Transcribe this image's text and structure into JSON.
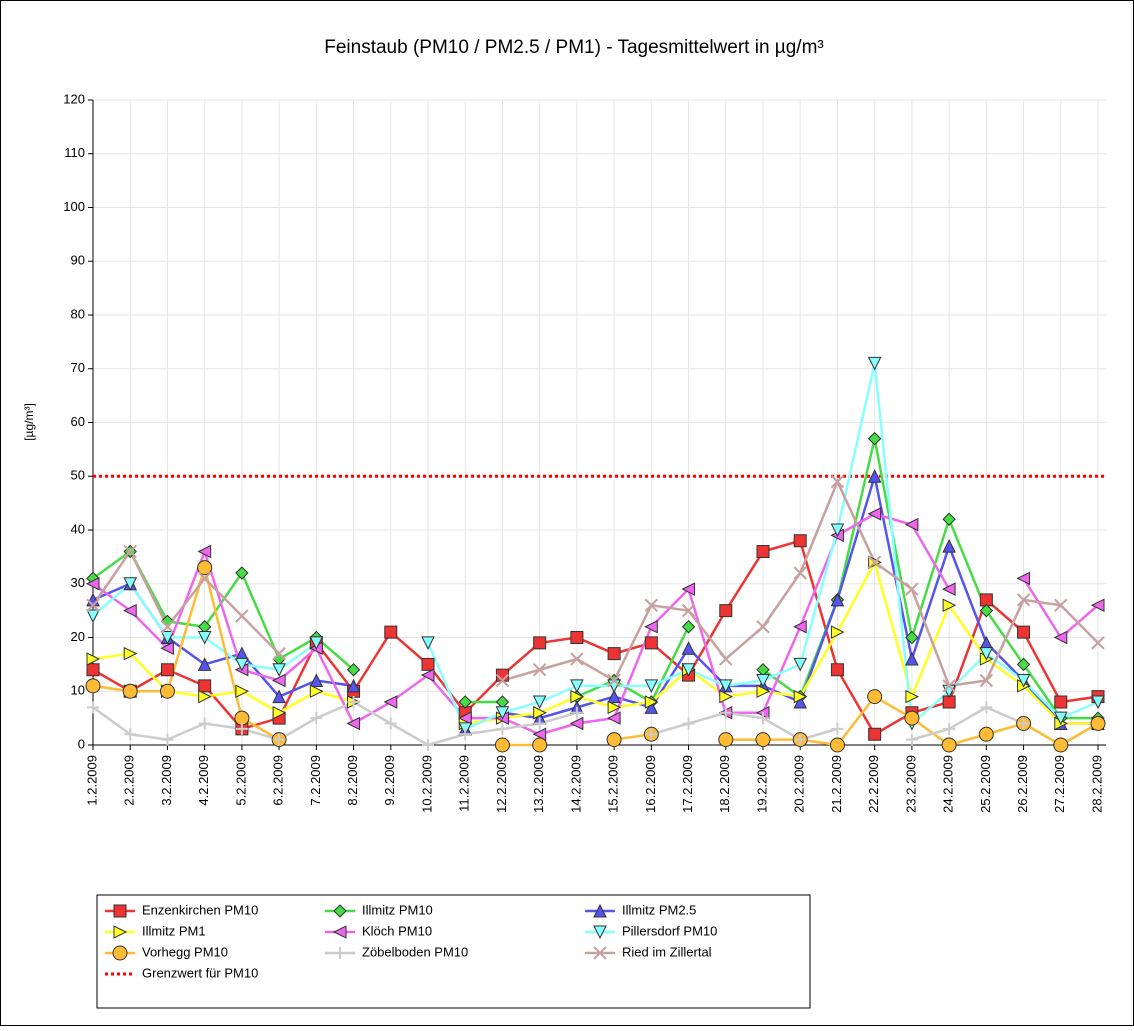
{
  "chart_data": {
    "type": "line",
    "title": "Feinstaub (PM10 / PM2.5 / PM1) -  Tagesmittelwert in µg/m³",
    "y_label": "[µg/m³]",
    "categories": [
      "1.2.2009",
      "2.2.2009",
      "3.2.2009",
      "4.2.2009",
      "5.2.2009",
      "6.2.2009",
      "7.2.2009",
      "8.2.2009",
      "9.2.2009",
      "10.2.2009",
      "11.2.2009",
      "12.2.2009",
      "13.2.2009",
      "14.2.2009",
      "15.2.2009",
      "16.2.2009",
      "17.2.2009",
      "18.2.2009",
      "19.2.2009",
      "20.2.2009",
      "21.2.2009",
      "22.2.2009",
      "23.2.2009",
      "24.2.2009",
      "25.2.2009",
      "26.2.2009",
      "27.2.2009",
      "28.2.2009"
    ],
    "ylim": [
      0,
      120
    ],
    "yticks": [
      0,
      10,
      20,
      30,
      40,
      50,
      60,
      70,
      80,
      90,
      100,
      110,
      120
    ],
    "grid": true,
    "series": [
      {
        "name": "Enzenkirchen PM10",
        "color": "#ee3333",
        "marker": "square",
        "values": [
          14,
          10,
          14,
          11,
          3,
          5,
          19,
          10,
          21,
          15,
          6,
          13,
          19,
          20,
          17,
          19,
          13,
          25,
          36,
          38,
          14,
          2,
          6,
          8,
          27,
          21,
          8,
          9
        ]
      },
      {
        "name": "Illmitz PM10",
        "color": "#44dd44",
        "marker": "diamond",
        "values": [
          31,
          36,
          23,
          22,
          32,
          16,
          20,
          14,
          null,
          null,
          8,
          8,
          null,
          9,
          12,
          8,
          22,
          null,
          14,
          9,
          27,
          57,
          20,
          42,
          25,
          15,
          5,
          5
        ]
      },
      {
        "name": "Illmitz PM2.5",
        "color": "#5555ee",
        "marker": "triangle-up",
        "values": [
          27,
          30,
          20,
          15,
          17,
          9,
          12,
          11,
          null,
          null,
          3,
          6,
          5,
          7,
          9,
          7,
          18,
          11,
          11,
          8,
          27,
          50,
          16,
          37,
          19,
          12,
          4,
          4
        ]
      },
      {
        "name": "Illmitz PM1",
        "color": "#ffff22",
        "marker": "triangle-right",
        "values": [
          16,
          17,
          10,
          9,
          10,
          6,
          10,
          8,
          null,
          null,
          4,
          5,
          6,
          9,
          7,
          8,
          14,
          9,
          10,
          9,
          21,
          34,
          9,
          26,
          16,
          11,
          4,
          4
        ]
      },
      {
        "name": "Klöch PM10",
        "color": "#ee66ee",
        "marker": "triangle-left",
        "values": [
          30,
          25,
          18,
          36,
          14,
          12,
          18,
          4,
          8,
          13,
          5,
          5,
          2,
          4,
          5,
          22,
          29,
          6,
          6,
          22,
          39,
          43,
          41,
          29,
          null,
          31,
          20,
          26
        ]
      },
      {
        "name": "Pillersdorf PM10",
        "color": "#88ffff",
        "marker": "triangle-down",
        "values": [
          24,
          30,
          20,
          20,
          15,
          14,
          19,
          null,
          null,
          19,
          3,
          6,
          8,
          11,
          11,
          11,
          14,
          11,
          12,
          15,
          40,
          71,
          4,
          10,
          17,
          12,
          5,
          8
        ]
      },
      {
        "name": "Vorhegg PM10",
        "color": "#ffbb33",
        "marker": "circle",
        "values": [
          11,
          10,
          10,
          33,
          5,
          1,
          null,
          null,
          null,
          null,
          null,
          0,
          0,
          null,
          1,
          2,
          null,
          1,
          1,
          1,
          0,
          9,
          5,
          0,
          2,
          4,
          0,
          4
        ]
      },
      {
        "name": "Zöbelboden PM10",
        "color": "#cccccc",
        "marker": "plus",
        "values": [
          7,
          2,
          1,
          4,
          3,
          1,
          5,
          8,
          4,
          0,
          2,
          3,
          4,
          6,
          null,
          2,
          4,
          6,
          5,
          1,
          3,
          null,
          1,
          3,
          7,
          4,
          null,
          null
        ]
      },
      {
        "name": "Ried im Zillertal",
        "color": "#c8a0a0",
        "marker": "x",
        "values": [
          26,
          36,
          22,
          31,
          24,
          17,
          null,
          null,
          null,
          null,
          null,
          12,
          14,
          16,
          12,
          26,
          25,
          16,
          22,
          32,
          49,
          34,
          29,
          11,
          12,
          27,
          26,
          19
        ]
      }
    ],
    "threshold": {
      "name": "Grenzwert für PM10",
      "value": 50,
      "color": "#ff0000"
    }
  }
}
